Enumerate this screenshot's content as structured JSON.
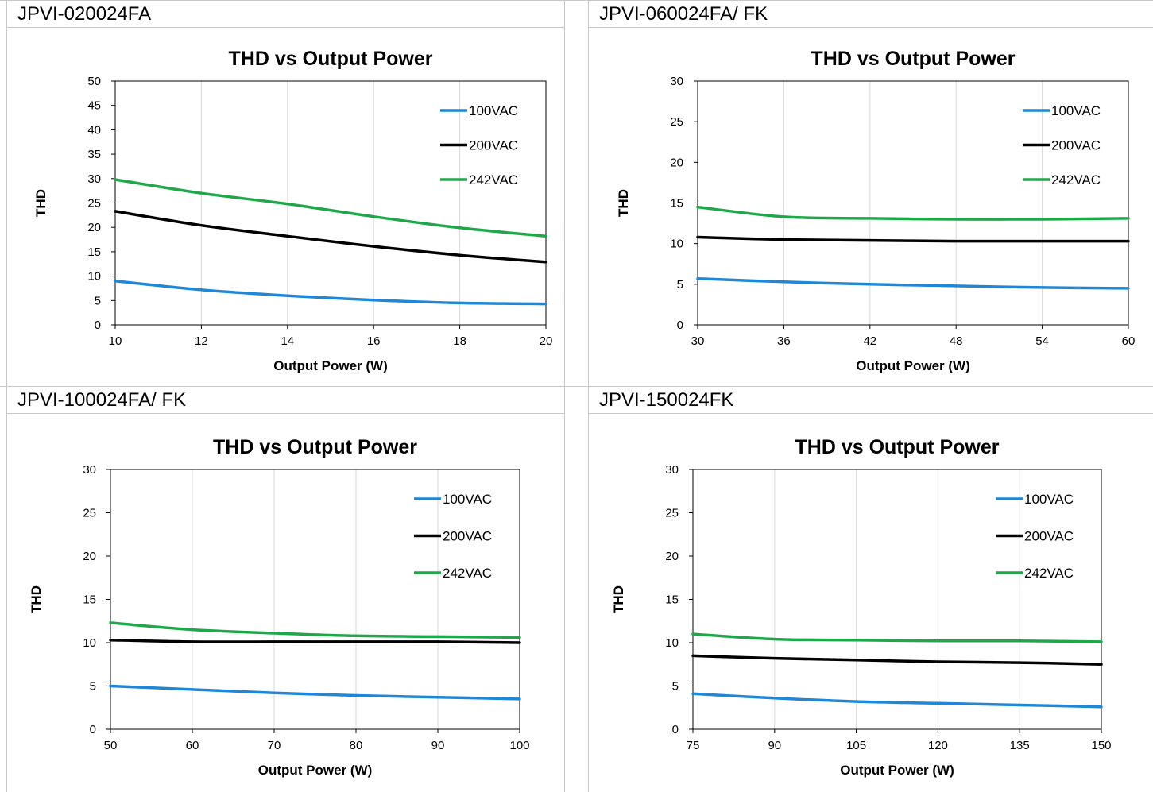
{
  "colors": {
    "100VAC": "#1f87d6",
    "200VAC": "#000000",
    "242VAC": "#1ea84a",
    "grid": "#d9d9d9"
  },
  "panels": [
    {
      "model": "JPVI-020024FA"
    },
    {
      "model": "JPVI-060024FA/ FK"
    },
    {
      "model": "JPVI-100024FA/ FK"
    },
    {
      "model": "JPVI-150024FK"
    }
  ],
  "chart_data": [
    {
      "type": "line",
      "title": "THD vs Output Power",
      "xlabel": "Output Power (W)",
      "ylabel": "THD",
      "xlim": [
        10,
        20
      ],
      "xticks": [
        10,
        12,
        14,
        16,
        18,
        20
      ],
      "ylim": [
        0,
        50
      ],
      "yticks": [
        0,
        5,
        10,
        15,
        20,
        25,
        30,
        35,
        40,
        45,
        50
      ],
      "grid": "vertical",
      "legend": "top-right",
      "series": [
        {
          "name": "100VAC",
          "x": [
            10,
            12,
            14,
            16,
            18,
            20
          ],
          "y": [
            9.0,
            7.2,
            6.0,
            5.1,
            4.5,
            4.3
          ]
        },
        {
          "name": "200VAC",
          "x": [
            10,
            12,
            14,
            16,
            18,
            20
          ],
          "y": [
            23.3,
            20.4,
            18.2,
            16.1,
            14.3,
            12.9
          ]
        },
        {
          "name": "242VAC",
          "x": [
            10,
            12,
            14,
            16,
            18,
            20
          ],
          "y": [
            29.8,
            27.0,
            24.8,
            22.2,
            19.9,
            18.2
          ]
        }
      ]
    },
    {
      "type": "line",
      "title": "THD vs Output Power",
      "xlabel": "Output Power (W)",
      "ylabel": "THD",
      "xlim": [
        30,
        60
      ],
      "xticks": [
        30,
        36,
        42,
        48,
        54,
        60
      ],
      "ylim": [
        0,
        30
      ],
      "yticks": [
        0,
        5,
        10,
        15,
        20,
        25,
        30
      ],
      "grid": "vertical",
      "legend": "top-right",
      "series": [
        {
          "name": "100VAC",
          "x": [
            30,
            36,
            42,
            48,
            54,
            60
          ],
          "y": [
            5.7,
            5.3,
            5.0,
            4.8,
            4.6,
            4.5
          ]
        },
        {
          "name": "200VAC",
          "x": [
            30,
            36,
            42,
            48,
            54,
            60
          ],
          "y": [
            10.8,
            10.5,
            10.4,
            10.3,
            10.3,
            10.3
          ]
        },
        {
          "name": "242VAC",
          "x": [
            30,
            36,
            42,
            48,
            54,
            60
          ],
          "y": [
            14.5,
            13.3,
            13.1,
            13.0,
            13.0,
            13.1
          ]
        }
      ]
    },
    {
      "type": "line",
      "title": "THD vs Output Power",
      "xlabel": "Output Power (W)",
      "ylabel": "THD",
      "xlim": [
        50,
        100
      ],
      "xticks": [
        50,
        60,
        70,
        80,
        90,
        100
      ],
      "ylim": [
        0,
        30
      ],
      "yticks": [
        0,
        5,
        10,
        15,
        20,
        25,
        30
      ],
      "grid": "vertical",
      "legend": "top-right",
      "series": [
        {
          "name": "100VAC",
          "x": [
            50,
            60,
            70,
            80,
            90,
            100
          ],
          "y": [
            5.0,
            4.6,
            4.2,
            3.9,
            3.7,
            3.5
          ]
        },
        {
          "name": "200VAC",
          "x": [
            50,
            60,
            70,
            80,
            90,
            100
          ],
          "y": [
            10.3,
            10.1,
            10.1,
            10.1,
            10.1,
            10.0
          ]
        },
        {
          "name": "242VAC",
          "x": [
            50,
            60,
            70,
            80,
            90,
            100
          ],
          "y": [
            12.3,
            11.5,
            11.1,
            10.8,
            10.7,
            10.6
          ]
        }
      ]
    },
    {
      "type": "line",
      "title": "THD vs Output Power",
      "xlabel": "Output Power (W)",
      "ylabel": "THD",
      "xlim": [
        75,
        150
      ],
      "xticks": [
        75,
        90,
        105,
        120,
        135,
        150
      ],
      "ylim": [
        0,
        30
      ],
      "yticks": [
        0,
        5,
        10,
        15,
        20,
        25,
        30
      ],
      "grid": "vertical",
      "legend": "top-right",
      "series": [
        {
          "name": "100VAC",
          "x": [
            75,
            90,
            105,
            120,
            135,
            150
          ],
          "y": [
            4.1,
            3.6,
            3.2,
            3.0,
            2.8,
            2.6
          ]
        },
        {
          "name": "200VAC",
          "x": [
            75,
            90,
            105,
            120,
            135,
            150
          ],
          "y": [
            8.5,
            8.2,
            8.0,
            7.8,
            7.7,
            7.5
          ]
        },
        {
          "name": "242VAC",
          "x": [
            75,
            90,
            105,
            120,
            135,
            150
          ],
          "y": [
            11.0,
            10.4,
            10.3,
            10.2,
            10.2,
            10.1
          ]
        }
      ]
    }
  ]
}
